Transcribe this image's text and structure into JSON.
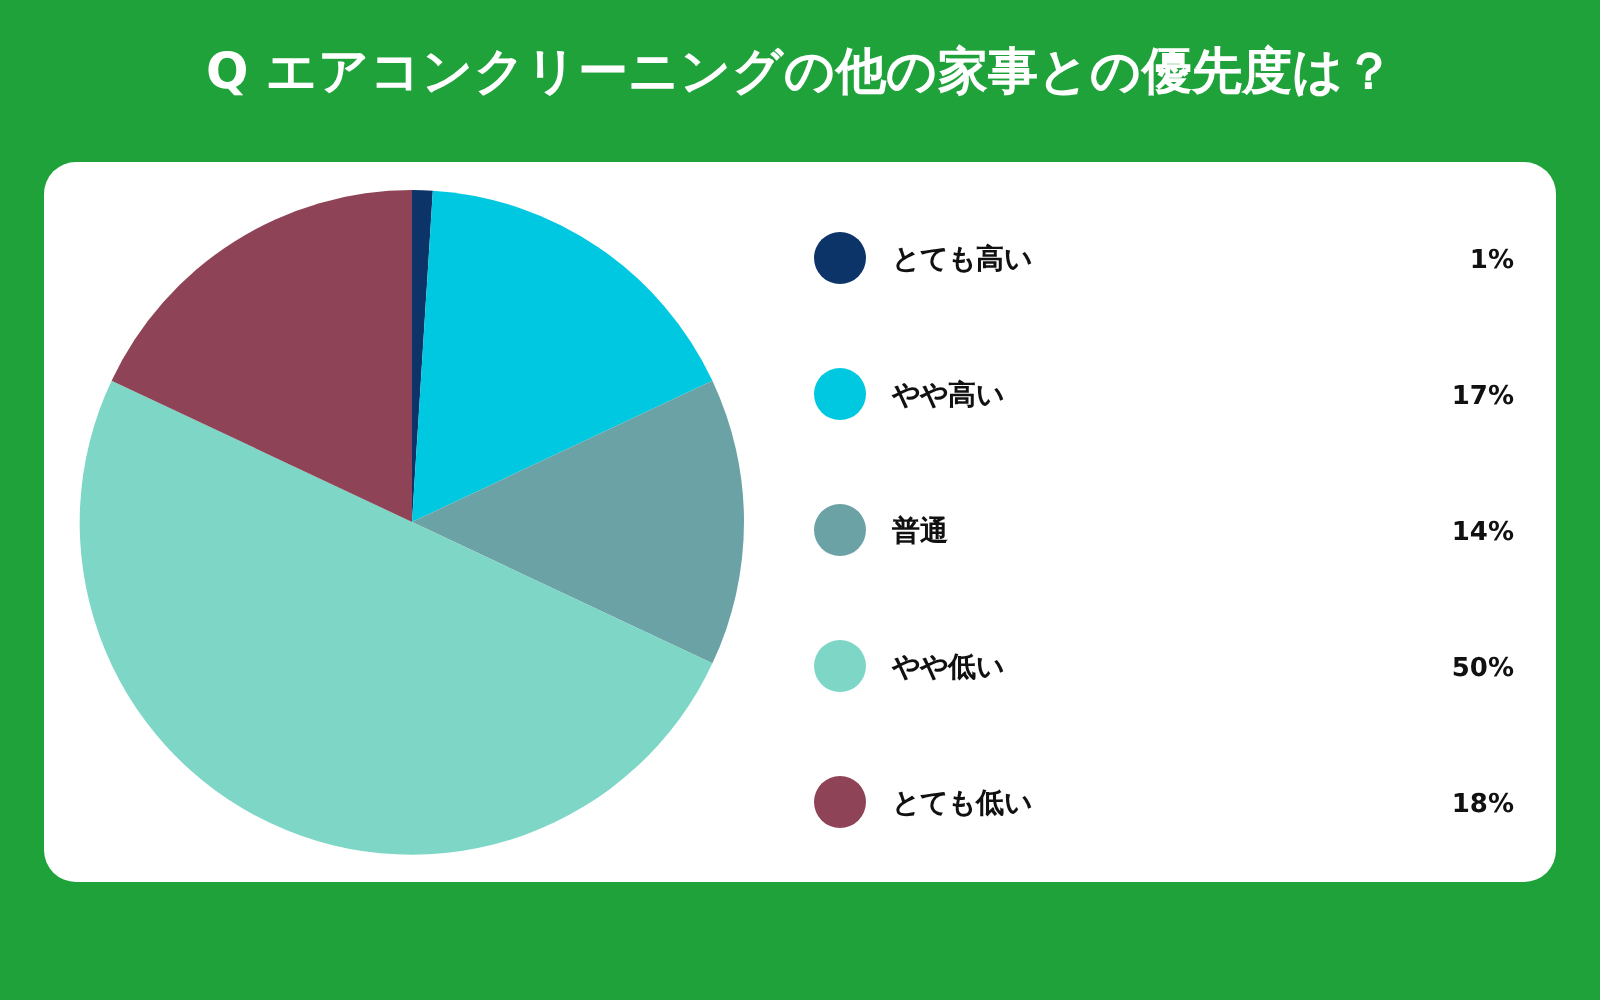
{
  "chart_data": {
    "type": "pie",
    "title": "Q エアコンクリーニングの他の家事との優先度は？",
    "categories": [
      "とても高い",
      "やや高い",
      "普通",
      "やや低い",
      "とても低い"
    ],
    "values": [
      1,
      17,
      14,
      50,
      18
    ],
    "value_labels": [
      "1%",
      "17%",
      "14%",
      "50%",
      "18%"
    ],
    "colors": [
      "#0c3468",
      "#00c8e0",
      "#6aa2a6",
      "#7dd6c6",
      "#8e4456"
    ],
    "legend": "right"
  }
}
